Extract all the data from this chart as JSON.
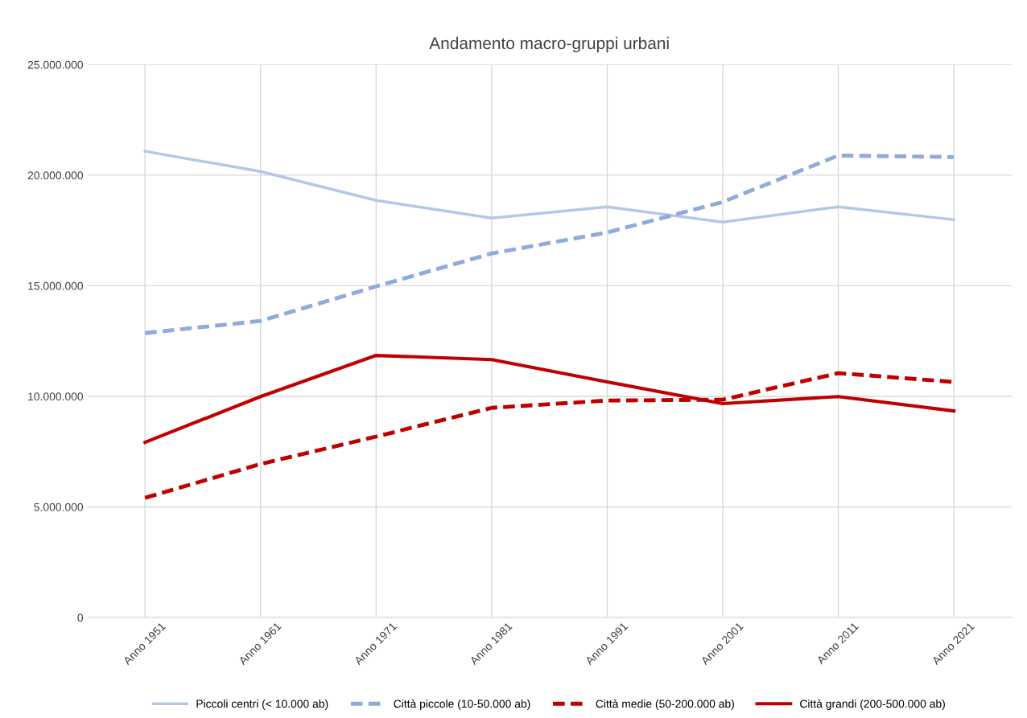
{
  "chart_data": {
    "type": "line",
    "title": "Andamento macro-gruppi urbani",
    "categories": [
      "Anno 1951",
      "Anno 1961",
      "Anno 1971",
      "Anno 1981",
      "Anno 1991",
      "Anno 2001",
      "Anno 2011",
      "Anno 2021"
    ],
    "series": [
      {
        "name": "Piccoli centri (< 10.000 ab)",
        "color": "#b4c7e7",
        "line_style": "solid",
        "values": [
          21080000,
          20170000,
          18860000,
          18060000,
          18570000,
          17880000,
          18570000,
          17990000
        ]
      },
      {
        "name": "Città piccole (10-50.000 ab)",
        "color": "#8faadc",
        "line_style": "dashed",
        "values": [
          12860000,
          13410000,
          14970000,
          16460000,
          17410000,
          18790000,
          20890000,
          20820000
        ]
      },
      {
        "name": "Città medie (50-200.000 ab)",
        "color": "#c00000",
        "line_style": "dashed",
        "values": [
          5410000,
          6940000,
          8180000,
          9480000,
          9810000,
          9850000,
          11050000,
          10650000
        ]
      },
      {
        "name": "Città grandi (200-500.000 ab)",
        "color": "#c00000",
        "line_style": "solid",
        "values": [
          7920000,
          9990000,
          11850000,
          11660000,
          10650000,
          9670000,
          9990000,
          9340000
        ]
      }
    ],
    "ylim": [
      0,
      25000000
    ],
    "yticks": [
      0,
      {
        "value": 5000000,
        "label": "5.000.000"
      },
      {
        "value": 10000000,
        "label": "10.000.000"
      },
      {
        "value": 15000000,
        "label": "15.000.000"
      },
      {
        "value": 20000000,
        "label": "20.000.000"
      },
      {
        "value": 25000000,
        "label": "25.000.000"
      }
    ],
    "grid": true,
    "legend": "bottom",
    "marker": "none"
  }
}
